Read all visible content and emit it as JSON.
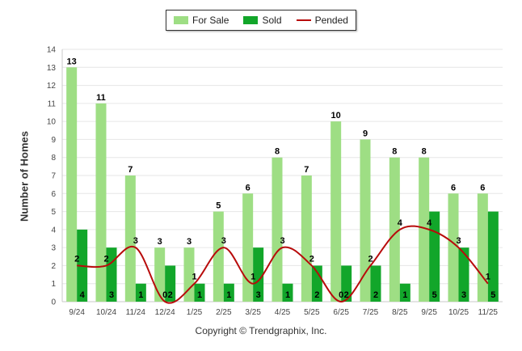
{
  "chart_data": {
    "type": "bar",
    "title": "",
    "xlabel": "",
    "ylabel": "Number of Homes",
    "ylim": [
      0,
      14
    ],
    "yticks": [
      0,
      1,
      2,
      3,
      4,
      5,
      6,
      7,
      8,
      9,
      10,
      11,
      12,
      13,
      14
    ],
    "grid": true,
    "legend_position": "top-center",
    "categories": [
      "9/24",
      "10/24",
      "11/24",
      "12/24",
      "1/25",
      "2/25",
      "3/25",
      "4/25",
      "5/25",
      "6/25",
      "7/25",
      "8/25",
      "9/25",
      "10/25",
      "11/25"
    ],
    "series": [
      {
        "name": "For Sale",
        "kind": "bar",
        "color": "#9ede84",
        "values": [
          13,
          11,
          7,
          3,
          3,
          5,
          6,
          8,
          7,
          10,
          9,
          8,
          8,
          6,
          6
        ]
      },
      {
        "name": "Sold",
        "kind": "bar",
        "color": "#12a62a",
        "values": [
          4,
          3,
          1,
          2,
          1,
          1,
          3,
          1,
          2,
          2,
          2,
          1,
          5,
          3,
          5
        ]
      },
      {
        "name": "Pended",
        "kind": "line",
        "color": "#b80b0b",
        "values": [
          2,
          2,
          3,
          0,
          1,
          3,
          1,
          3,
          2,
          0,
          2,
          4,
          4,
          3,
          1
        ]
      }
    ]
  },
  "copyright": "Copyright © Trendgraphix, Inc."
}
